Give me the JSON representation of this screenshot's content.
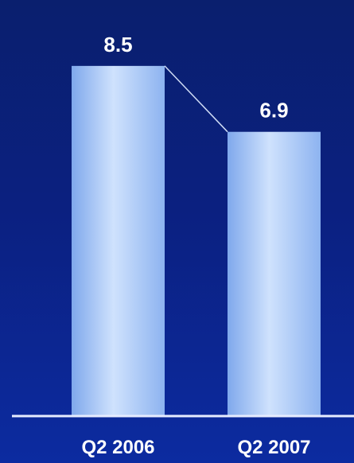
{
  "chart_data": {
    "type": "bar",
    "categories": [
      "Q2 2006",
      "Q2 2007"
    ],
    "values": [
      8.5,
      6.9
    ],
    "value_labels": [
      "8.5",
      "6.9"
    ],
    "title": "",
    "xlabel": "",
    "ylabel": "",
    "ylim": [
      0,
      10.1
    ],
    "grid": false,
    "legend": "none",
    "connector_line": true
  },
  "colors": {
    "background_top": "#0a1f6e",
    "background_bottom": "#0c2ba0",
    "bar_edge": "#8fb6f2",
    "bar_center": "#c9defc",
    "axis": "#e6ecff",
    "text": "#ffffff"
  }
}
